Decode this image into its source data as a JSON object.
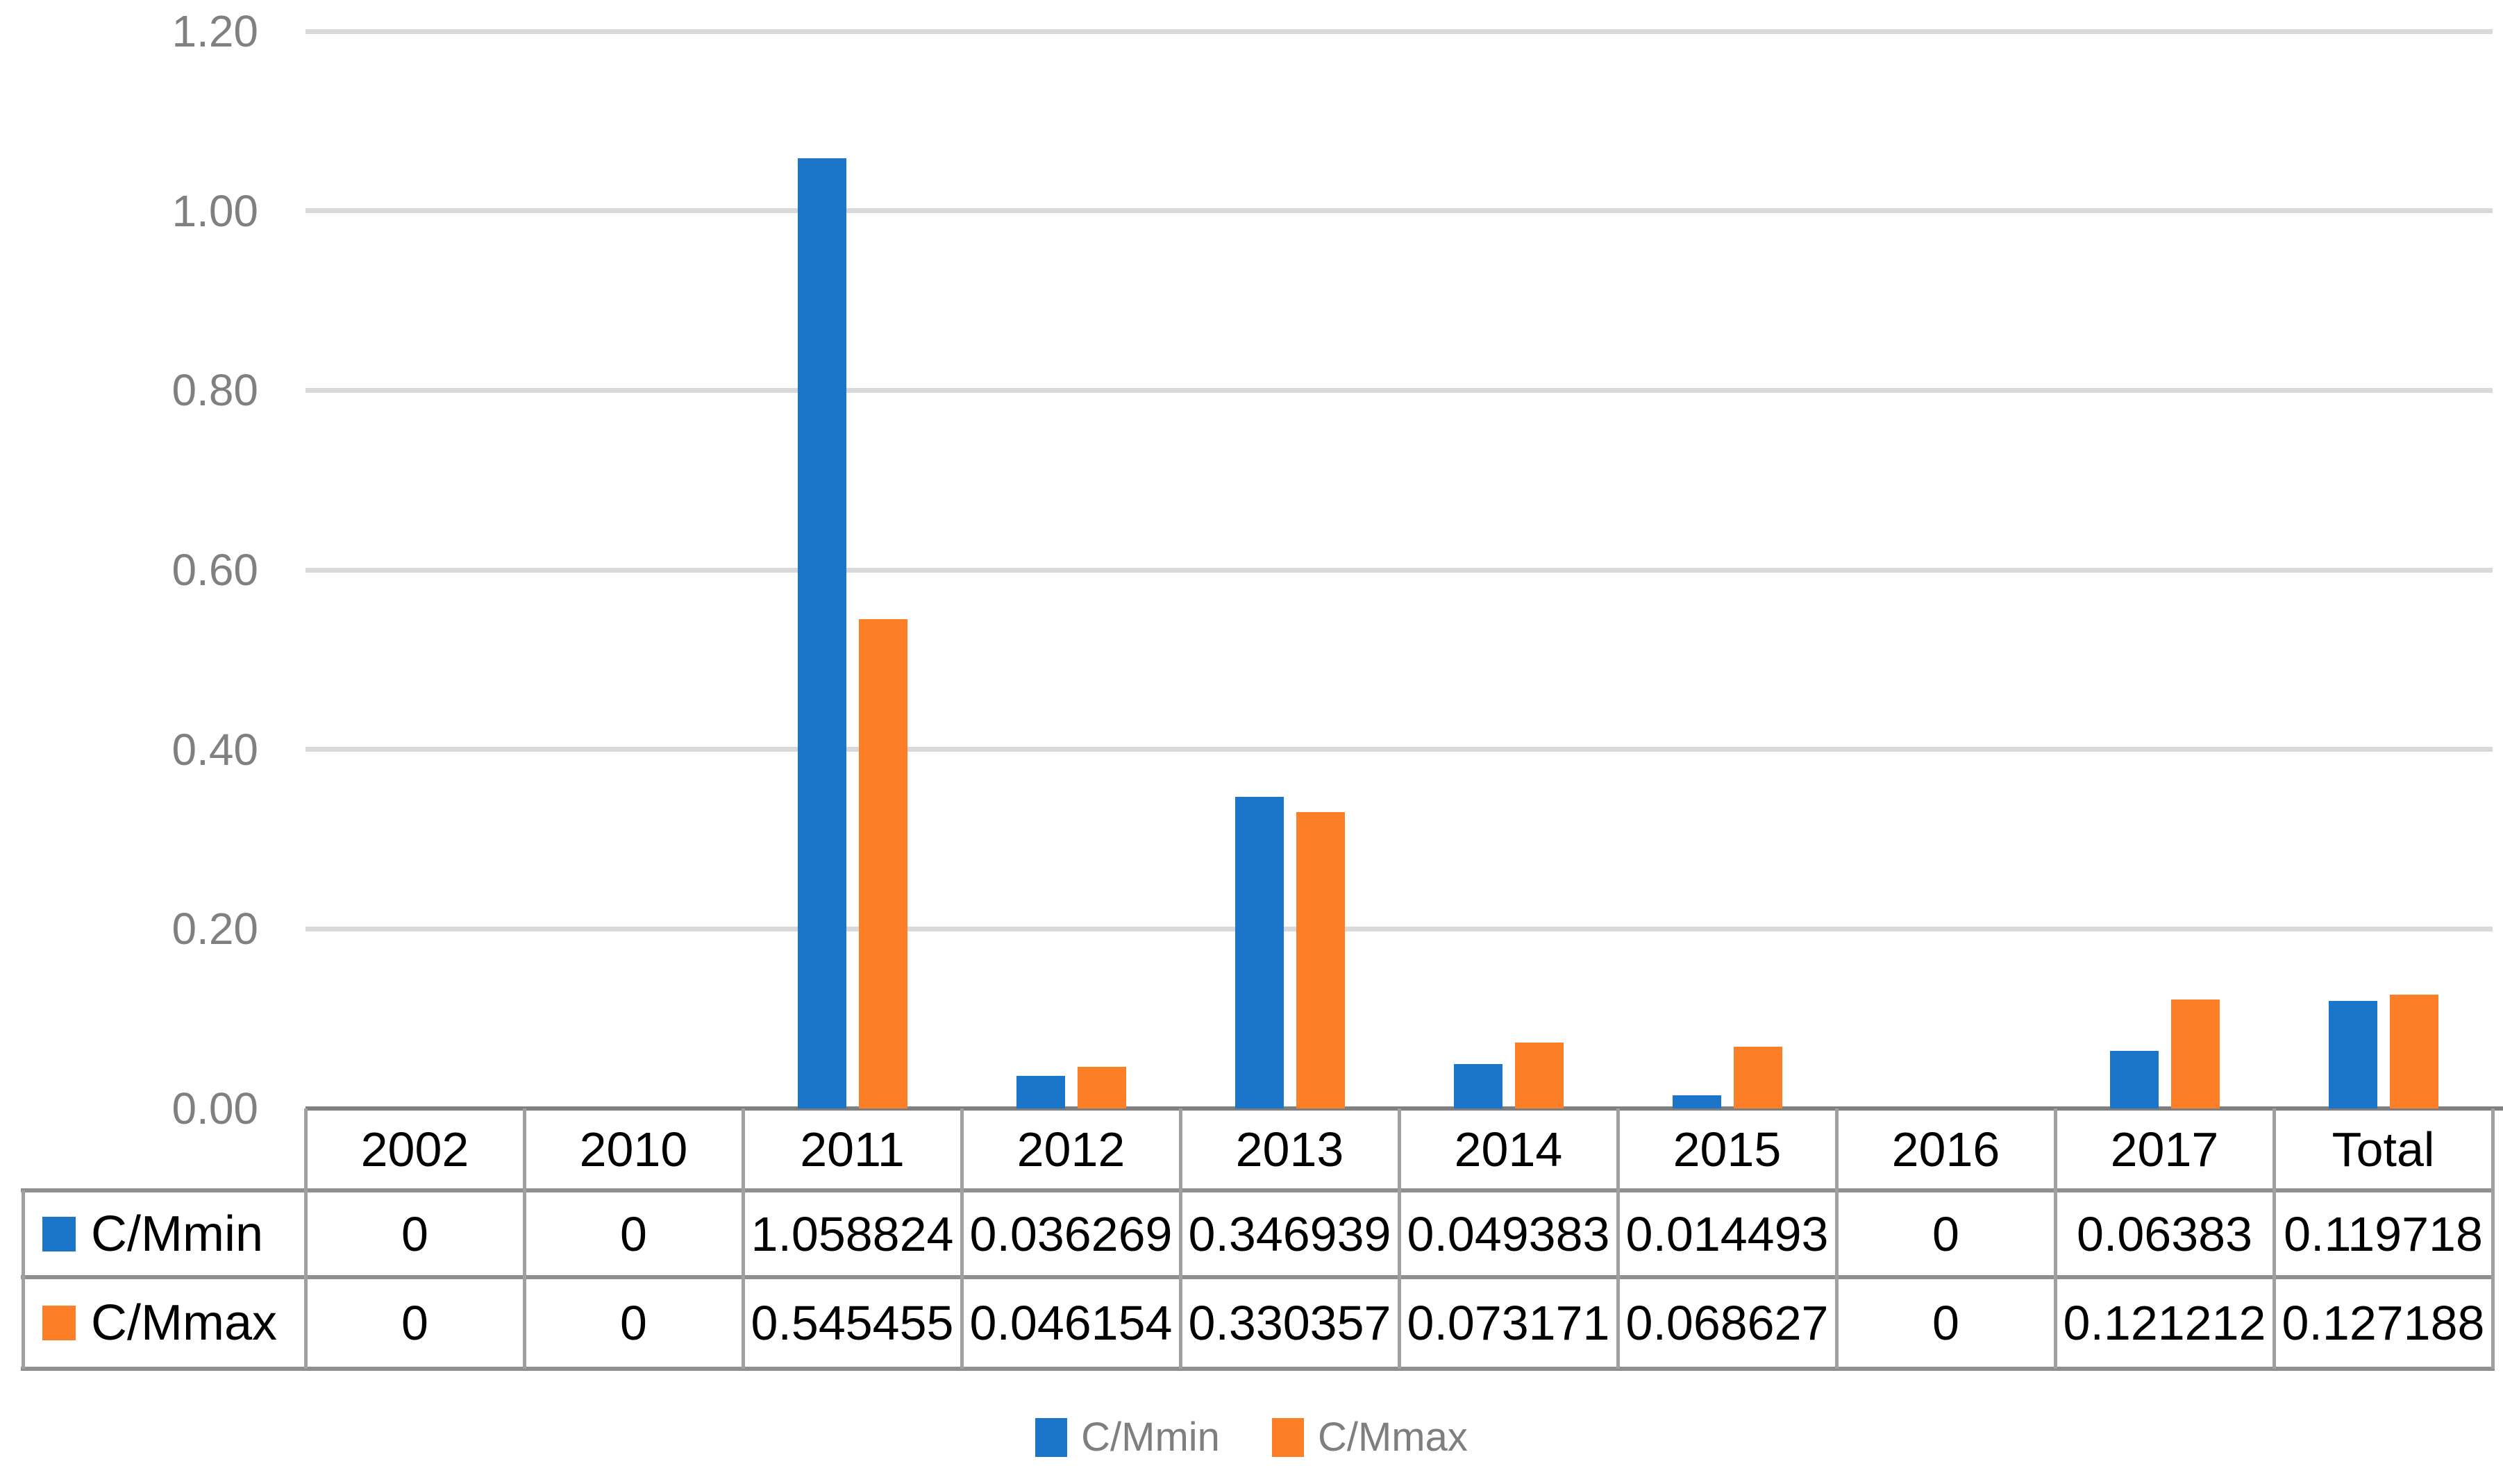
{
  "chart_data": {
    "type": "bar",
    "title": "",
    "xlabel": "",
    "ylabel": "",
    "categories": [
      "2002",
      "2010",
      "2011",
      "2012",
      "2013",
      "2014",
      "2015",
      "2016",
      "2017",
      "Total"
    ],
    "series": [
      {
        "name": "C/Mmin",
        "color": "#1B75C8",
        "values": [
          0,
          0,
          1.058824,
          0.036269,
          0.346939,
          0.049383,
          0.014493,
          0,
          0.06383,
          0.119718
        ],
        "value_labels": [
          "0",
          "0",
          "1.058824",
          "0.036269",
          "0.346939",
          "0.049383",
          "0.014493",
          "0",
          "0.06383",
          "0.119718"
        ]
      },
      {
        "name": "C/Mmax",
        "color": "#FC7E26",
        "values": [
          0,
          0,
          0.545455,
          0.046154,
          0.330357,
          0.073171,
          0.068627,
          0,
          0.121212,
          0.127188
        ],
        "value_labels": [
          "0",
          "0",
          "0.545455",
          "0.046154",
          "0.330357",
          "0.073171",
          "0.068627",
          "0",
          "0.121212",
          "0.127188"
        ]
      }
    ],
    "ylim": [
      0,
      1.2
    ],
    "yticks": [
      0,
      0.2,
      0.4,
      0.6,
      0.8,
      1.0,
      1.2
    ],
    "ytick_labels": [
      "0.00",
      "0.20",
      "0.40",
      "0.60",
      "0.80",
      "1.00",
      "1.20"
    ],
    "grid": true,
    "legend_position": "bottom",
    "data_table_shown": true
  },
  "legend": {
    "items": [
      {
        "label": "C/Mmin",
        "color": "#1B75C8"
      },
      {
        "label": "C/Mmax",
        "color": "#FC7E26"
      }
    ]
  },
  "colors": {
    "background": "#FFFFFF",
    "gridline": "#D9D9D9",
    "axis_line": "#7F7F7F",
    "table_border_h": "#8F8F8F",
    "table_border_v": "#A0A0A0",
    "tick_label_text": "#808080",
    "legend_text": "#7F7F7F",
    "table_text": "#000000"
  }
}
